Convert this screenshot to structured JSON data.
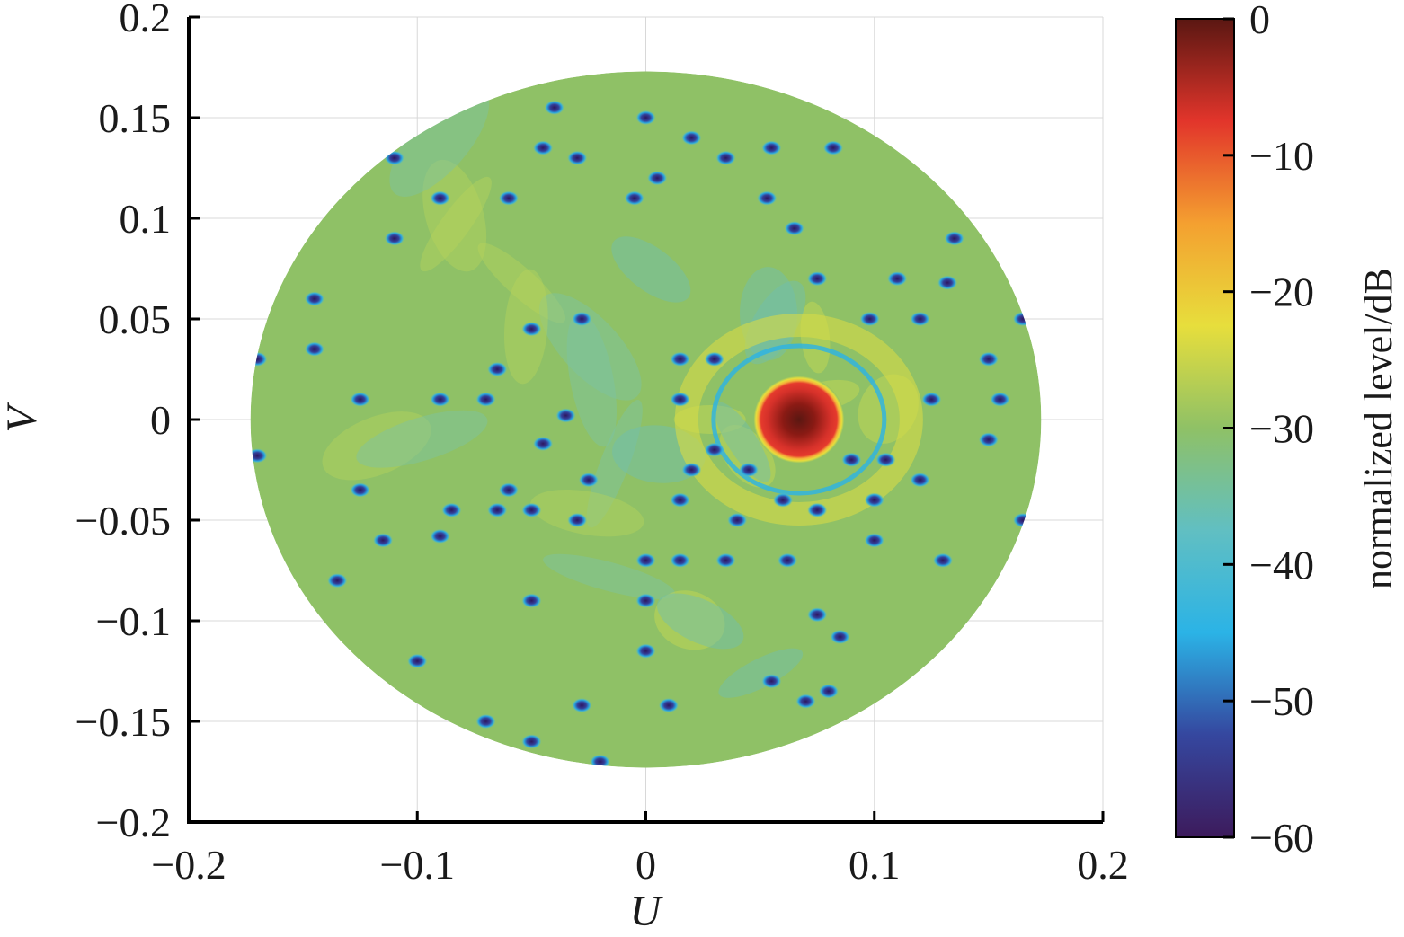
{
  "chart_data": {
    "type": "heatmap",
    "title": "",
    "xlabel": "U",
    "ylabel": "V",
    "xlim": [
      -0.2,
      0.2
    ],
    "ylim": [
      -0.2,
      0.2
    ],
    "x_ticks": [
      -0.2,
      -0.1,
      0,
      0.1,
      0.2
    ],
    "x_tick_labels": [
      "−0.2",
      "−0.1",
      "0",
      "0.1",
      "0.2"
    ],
    "y_ticks": [
      -0.2,
      -0.15,
      -0.1,
      -0.05,
      0,
      0.05,
      0.1,
      0.15,
      0.2
    ],
    "y_tick_labels": [
      "−0.2",
      "−0.15",
      "−0.1",
      "−0.05",
      "0",
      "0.05",
      "0.1",
      "0.15",
      "0.2"
    ],
    "grid": true,
    "region": {
      "shape": "circle",
      "center": [
        0,
        0
      ],
      "radius": 0.173
    },
    "main_beam": {
      "u": 0.067,
      "v": 0,
      "level_db": 0,
      "half_width": 0.018
    },
    "background_level_db": -31,
    "null_level_db": -60,
    "nulls": [
      [
        -0.04,
        0.155
      ],
      [
        -0.0,
        0.15
      ],
      [
        -0.045,
        0.135
      ],
      [
        -0.03,
        0.13
      ],
      [
        0.005,
        0.12
      ],
      [
        0.02,
        0.14
      ],
      [
        0.035,
        0.13
      ],
      [
        0.055,
        0.135
      ],
      [
        0.082,
        0.135
      ],
      [
        -0.11,
        0.13
      ],
      [
        -0.09,
        0.11
      ],
      [
        -0.06,
        0.11
      ],
      [
        -0.005,
        0.11
      ],
      [
        0.053,
        0.11
      ],
      [
        0.065,
        0.095
      ],
      [
        0.135,
        0.09
      ],
      [
        -0.11,
        0.09
      ],
      [
        -0.145,
        0.06
      ],
      [
        0.075,
        0.07
      ],
      [
        0.11,
        0.07
      ],
      [
        0.132,
        0.068
      ],
      [
        -0.028,
        0.05
      ],
      [
        -0.145,
        0.035
      ],
      [
        0.098,
        0.05
      ],
      [
        0.12,
        0.05
      ],
      [
        0.165,
        0.05
      ],
      [
        -0.05,
        0.045
      ],
      [
        -0.065,
        0.025
      ],
      [
        0.015,
        0.03
      ],
      [
        0.03,
        0.03
      ],
      [
        0.15,
        0.03
      ],
      [
        -0.17,
        0.03
      ],
      [
        -0.125,
        0.01
      ],
      [
        -0.09,
        0.01
      ],
      [
        -0.07,
        0.01
      ],
      [
        -0.035,
        0.002
      ],
      [
        0.015,
        0.01
      ],
      [
        0.125,
        0.01
      ],
      [
        0.155,
        0.01
      ],
      [
        -0.17,
        -0.018
      ],
      [
        -0.045,
        -0.012
      ],
      [
        0.03,
        -0.015
      ],
      [
        0.045,
        -0.025
      ],
      [
        0.09,
        -0.02
      ],
      [
        0.105,
        -0.02
      ],
      [
        0.15,
        -0.01
      ],
      [
        -0.06,
        -0.035
      ],
      [
        -0.025,
        -0.03
      ],
      [
        0.02,
        -0.025
      ],
      [
        0.015,
        -0.04
      ],
      [
        0.06,
        -0.04
      ],
      [
        0.12,
        -0.03
      ],
      [
        0.1,
        -0.04
      ],
      [
        -0.125,
        -0.035
      ],
      [
        -0.085,
        -0.045
      ],
      [
        -0.065,
        -0.045
      ],
      [
        -0.05,
        -0.045
      ],
      [
        -0.03,
        -0.05
      ],
      [
        0.04,
        -0.05
      ],
      [
        0.075,
        -0.045
      ],
      [
        0.1,
        -0.06
      ],
      [
        -0.115,
        -0.06
      ],
      [
        -0.09,
        -0.058
      ],
      [
        0.0,
        -0.07
      ],
      [
        0.015,
        -0.07
      ],
      [
        0.035,
        -0.07
      ],
      [
        0.062,
        -0.07
      ],
      [
        0.13,
        -0.07
      ],
      [
        0.165,
        -0.05
      ],
      [
        -0.135,
        -0.08
      ],
      [
        -0.05,
        -0.09
      ],
      [
        0.0,
        -0.09
      ],
      [
        0.075,
        -0.097
      ],
      [
        0.085,
        -0.108
      ],
      [
        -0.1,
        -0.12
      ],
      [
        0.0,
        -0.115
      ],
      [
        0.055,
        -0.13
      ],
      [
        0.08,
        -0.135
      ],
      [
        0.07,
        -0.14
      ],
      [
        -0.07,
        -0.15
      ],
      [
        -0.028,
        -0.142
      ],
      [
        0.01,
        -0.142
      ],
      [
        -0.05,
        -0.16
      ],
      [
        -0.02,
        -0.17
      ]
    ],
    "colorbar": {
      "label": "normalized level/dB",
      "range": [
        -60,
        0
      ],
      "ticks": [
        0,
        -10,
        -20,
        -30,
        -40,
        -50,
        -60
      ],
      "tick_labels": [
        "0",
        "−10",
        "−20",
        "−30",
        "−40",
        "−50",
        "−60"
      ],
      "colormap": "parula-jet",
      "colors": [
        "#3d1b5c",
        "#35479f",
        "#2bb3e6",
        "#61bfc2",
        "#8fc166",
        "#e7de3c",
        "#f4a030",
        "#e2352b",
        "#5a1712"
      ]
    }
  }
}
